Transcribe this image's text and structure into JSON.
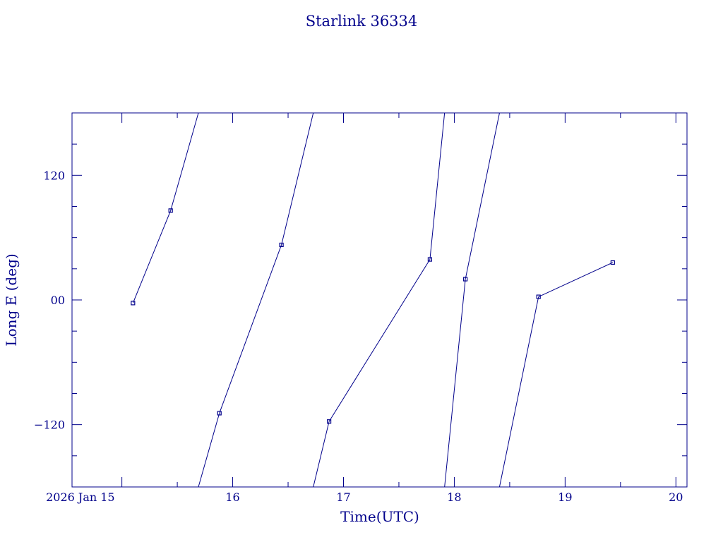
{
  "chart_data": {
    "type": "line",
    "title": "Starlink 36334",
    "xlabel": "Time(UTC)",
    "ylabel": "Long E (deg)",
    "x_ticks": [
      {
        "value": 15,
        "label": "2026 Jan 15"
      },
      {
        "value": 16,
        "label": "16"
      },
      {
        "value": 17,
        "label": "17"
      },
      {
        "value": 18,
        "label": "18"
      },
      {
        "value": 19,
        "label": "19"
      },
      {
        "value": 20,
        "label": "20"
      }
    ],
    "y_ticks": [
      {
        "value": 120,
        "label": "120"
      },
      {
        "value": 0,
        "label": "00"
      },
      {
        "value": -120,
        "label": "−120"
      }
    ],
    "xlim": [
      14.55,
      20.1
    ],
    "ylim": [
      -180,
      180
    ],
    "wrap_longitude": true,
    "series": [
      {
        "color": "#00008b",
        "x": [
          15.1,
          15.44,
          15.88,
          16.44,
          16.87,
          17.78,
          18.1,
          18.76,
          19.43
        ],
        "y": [
          -3,
          86,
          -109,
          53,
          -117,
          39,
          20,
          3,
          36
        ]
      }
    ],
    "grid": false,
    "legend": "none"
  }
}
